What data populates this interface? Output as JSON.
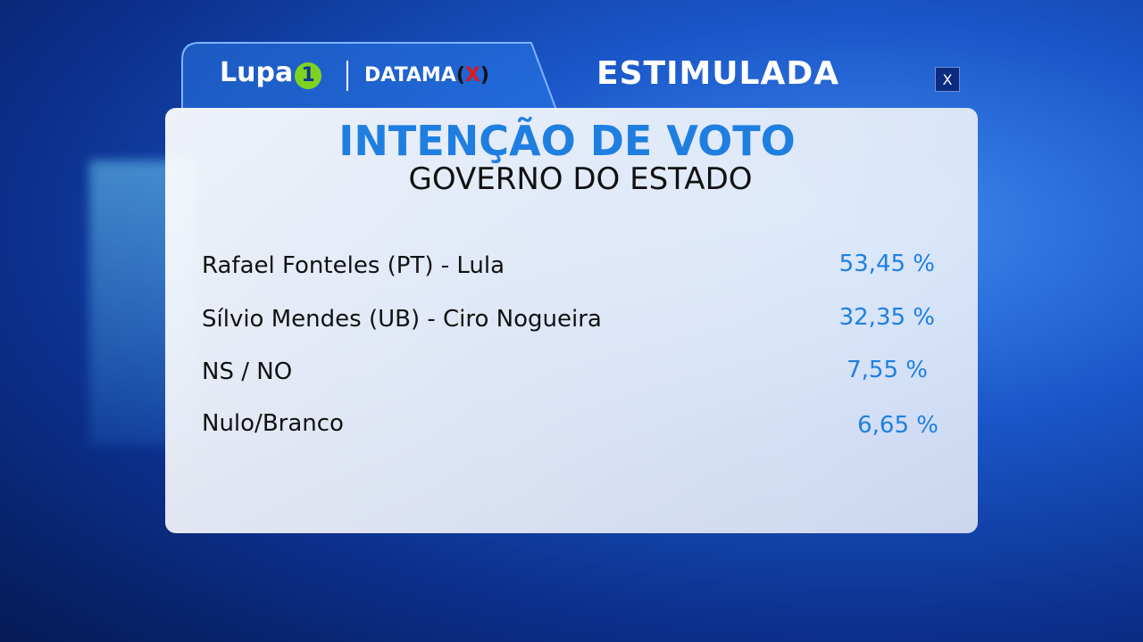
{
  "header": {
    "brand": "Lupa",
    "brand_badge": "1",
    "partner": "DATAMA",
    "partner_open": "(",
    "partner_x": "X",
    "partner_close": ")",
    "tab": "ESTIMULADA",
    "close": "X"
  },
  "panel": {
    "title": "INTENÇÃO DE VOTO",
    "subtitle": "GOVERNO DO ESTADO",
    "rows": [
      {
        "name": "Rafael Fonteles (PT) - Lula",
        "value": "53,45 %"
      },
      {
        "name": "Sílvio Mendes (UB) - Ciro Nogueira",
        "value": "32,35 %"
      },
      {
        "name": "NS / NO",
        "value": "7,55 %"
      },
      {
        "name": "Nulo/Branco",
        "value": "6,65 %"
      }
    ]
  }
}
